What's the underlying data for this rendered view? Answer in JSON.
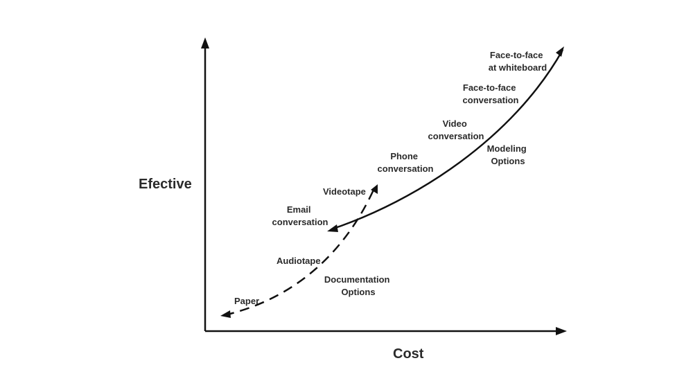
{
  "axes": {
    "y_title": "Efective",
    "x_title": "Cost"
  },
  "curves": {
    "modeling": {
      "name": "Modeling Options",
      "label_lines": [
        "Modeling",
        "Options"
      ],
      "style": "solid"
    },
    "documentation": {
      "name": "Documentation Options",
      "label_lines": [
        "Documentation",
        "Options"
      ],
      "style": "dashed"
    }
  },
  "media": {
    "face_to_face_whiteboard": [
      "Face-to-face",
      "at whiteboard"
    ],
    "face_to_face_conversation": [
      "Face-to-face",
      "conversation"
    ],
    "video_conversation": [
      "Video",
      "conversation"
    ],
    "phone_conversation": [
      "Phone",
      "conversation"
    ],
    "videotape": "Videotape",
    "email_conversation": [
      "Email",
      "conversation"
    ],
    "audiotape": "Audiotape",
    "paper": "Paper"
  },
  "colors": {
    "line": "#111111",
    "text": "#2a2a2a",
    "background": "#ffffff"
  }
}
